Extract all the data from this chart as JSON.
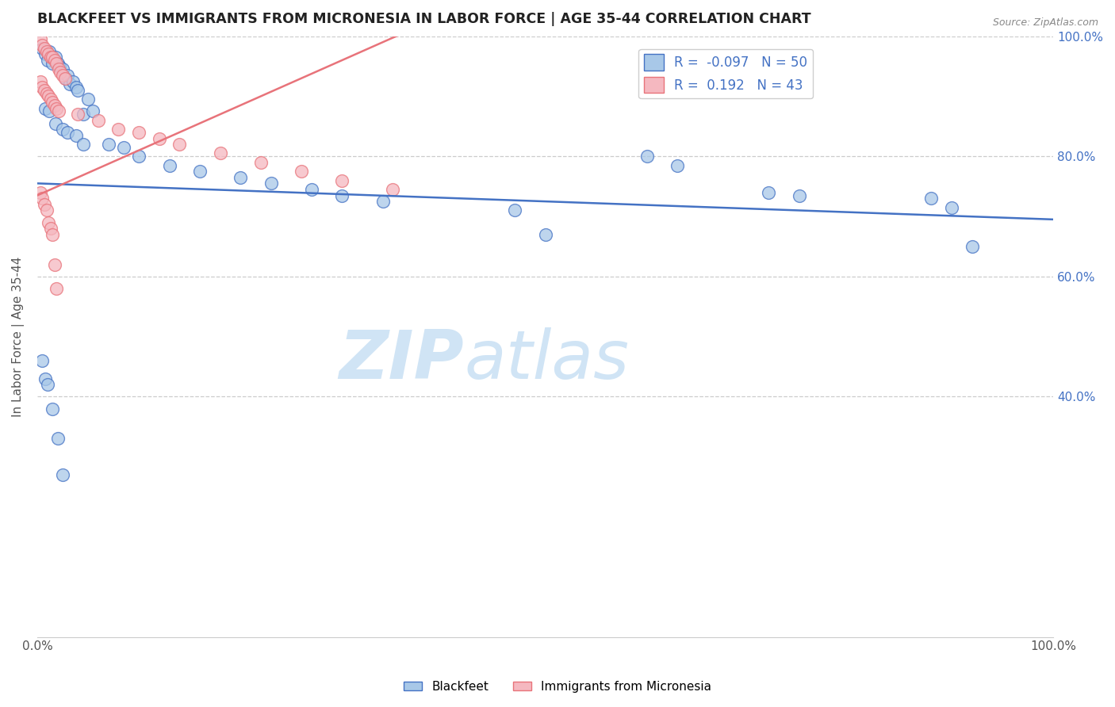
{
  "title": "BLACKFEET VS IMMIGRANTS FROM MICRONESIA IN LABOR FORCE | AGE 35-44 CORRELATION CHART",
  "source": "Source: ZipAtlas.com",
  "ylabel": "In Labor Force | Age 35-44",
  "R_blue": -0.097,
  "N_blue": 50,
  "R_pink": 0.192,
  "N_pink": 43,
  "color_blue": "#A8C8E8",
  "color_pink": "#F5B8C0",
  "line_blue": "#4472C4",
  "line_pink": "#E8737A",
  "watermark_color": "#D0E4F5",
  "xlim": [
    0.0,
    1.0
  ],
  "ylim": [
    0.0,
    1.0
  ],
  "blue_trend_x0": 0.0,
  "blue_trend_y0": 0.755,
  "blue_trend_x1": 1.0,
  "blue_trend_y1": 0.695,
  "pink_trend_x0": 0.0,
  "pink_trend_y0": 0.735,
  "pink_trend_x1": 0.38,
  "pink_trend_y1": 1.02,
  "blackfeet_x": [
    0.005,
    0.008,
    0.01,
    0.012,
    0.015,
    0.018,
    0.02,
    0.022,
    0.025,
    0.028,
    0.03,
    0.032,
    0.035,
    0.038,
    0.04,
    0.045,
    0.05,
    0.055,
    0.008,
    0.012,
    0.018,
    0.025,
    0.03,
    0.038,
    0.045,
    0.07,
    0.085,
    0.1,
    0.13,
    0.16,
    0.2,
    0.23,
    0.27,
    0.3,
    0.34,
    0.47,
    0.5,
    0.6,
    0.63,
    0.72,
    0.75,
    0.88,
    0.9,
    0.92,
    0.005,
    0.008,
    0.01,
    0.015,
    0.02,
    0.025
  ],
  "blackfeet_y": [
    0.98,
    0.97,
    0.96,
    0.975,
    0.955,
    0.965,
    0.955,
    0.95,
    0.945,
    0.93,
    0.935,
    0.92,
    0.925,
    0.915,
    0.91,
    0.87,
    0.895,
    0.875,
    0.88,
    0.875,
    0.855,
    0.845,
    0.84,
    0.835,
    0.82,
    0.82,
    0.815,
    0.8,
    0.785,
    0.775,
    0.765,
    0.755,
    0.745,
    0.735,
    0.725,
    0.71,
    0.67,
    0.8,
    0.785,
    0.74,
    0.735,
    0.73,
    0.715,
    0.65,
    0.46,
    0.43,
    0.42,
    0.38,
    0.33,
    0.27
  ],
  "micronesia_x": [
    0.003,
    0.005,
    0.007,
    0.009,
    0.011,
    0.013,
    0.015,
    0.017,
    0.019,
    0.021,
    0.023,
    0.025,
    0.027,
    0.003,
    0.005,
    0.007,
    0.009,
    0.011,
    0.013,
    0.015,
    0.017,
    0.019,
    0.021,
    0.04,
    0.06,
    0.08,
    0.1,
    0.12,
    0.14,
    0.18,
    0.22,
    0.26,
    0.3,
    0.35,
    0.003,
    0.005,
    0.007,
    0.009,
    0.011,
    0.013,
    0.015,
    0.017,
    0.019
  ],
  "micronesia_y": [
    0.995,
    0.985,
    0.98,
    0.975,
    0.97,
    0.965,
    0.965,
    0.96,
    0.955,
    0.945,
    0.94,
    0.935,
    0.93,
    0.925,
    0.915,
    0.91,
    0.905,
    0.9,
    0.895,
    0.89,
    0.885,
    0.88,
    0.875,
    0.87,
    0.86,
    0.845,
    0.84,
    0.83,
    0.82,
    0.805,
    0.79,
    0.775,
    0.76,
    0.745,
    0.74,
    0.73,
    0.72,
    0.71,
    0.69,
    0.68,
    0.67,
    0.62,
    0.58
  ]
}
